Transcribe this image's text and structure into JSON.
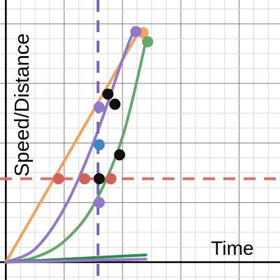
{
  "chart_data": {
    "type": "line",
    "title": "",
    "xlabel": "Time",
    "ylabel": "Speed/Distance",
    "xlim": [
      -0.1,
      4.7
    ],
    "ylim": [
      -0.3,
      4.4
    ],
    "grid": true,
    "legend": "none",
    "colors": {
      "orange": "#f7a25a",
      "purple": "#8f79c8",
      "green": "#64a86e",
      "dark_green": "#2f8a52",
      "red": "#d4605a",
      "blue": "#3d86c6",
      "black": "#111111",
      "guide_purple": "#7e65be",
      "guide_red": "#d9706b"
    },
    "series": [
      {
        "color": "orange",
        "points": [
          [
            0,
            0
          ],
          [
            2.3,
            3.9
          ]
        ]
      },
      {
        "color": "purple",
        "points": [
          [
            0,
            0
          ],
          [
            0.5,
            0.22
          ],
          [
            1.0,
            0.9
          ],
          [
            1.5,
            2.0
          ],
          [
            2.0,
            3.4
          ],
          [
            2.2,
            3.9
          ]
        ]
      },
      {
        "color": "green",
        "points": [
          [
            0,
            0
          ],
          [
            0.5,
            0.08
          ],
          [
            1.0,
            0.35
          ],
          [
            1.5,
            0.95
          ],
          [
            2.0,
            2.1
          ],
          [
            2.4,
            3.7
          ]
        ]
      },
      {
        "color": "dark_green",
        "points": [
          [
            0,
            0
          ],
          [
            2.4,
            0.12
          ]
        ]
      },
      {
        "color": "purple",
        "points": [
          [
            0,
            0
          ],
          [
            2.4,
            0.05
          ]
        ]
      }
    ],
    "reference_lines": [
      {
        "orientation": "vertical",
        "value": 1.58,
        "color": "guide_purple"
      },
      {
        "orientation": "horizontal",
        "value": 1.4,
        "color": "guide_red"
      }
    ],
    "points": [
      {
        "x": 2.35,
        "y": 3.85,
        "color": "orange"
      },
      {
        "x": 2.23,
        "y": 3.87,
        "color": "purple"
      },
      {
        "x": 2.43,
        "y": 3.7,
        "color": "green"
      },
      {
        "x": 1.75,
        "y": 2.82,
        "color": "black"
      },
      {
        "x": 1.87,
        "y": 2.65,
        "color": "black"
      },
      {
        "x": 1.6,
        "y": 2.6,
        "color": "purple"
      },
      {
        "x": 1.6,
        "y": 1.97,
        "color": "blue"
      },
      {
        "x": 1.95,
        "y": 1.8,
        "color": "black"
      },
      {
        "x": 0.9,
        "y": 1.4,
        "color": "red"
      },
      {
        "x": 1.35,
        "y": 1.4,
        "color": "red"
      },
      {
        "x": 1.6,
        "y": 1.4,
        "color": "black"
      },
      {
        "x": 1.8,
        "y": 1.4,
        "color": "red"
      },
      {
        "x": 1.6,
        "y": 1.0,
        "color": "purple"
      }
    ]
  }
}
